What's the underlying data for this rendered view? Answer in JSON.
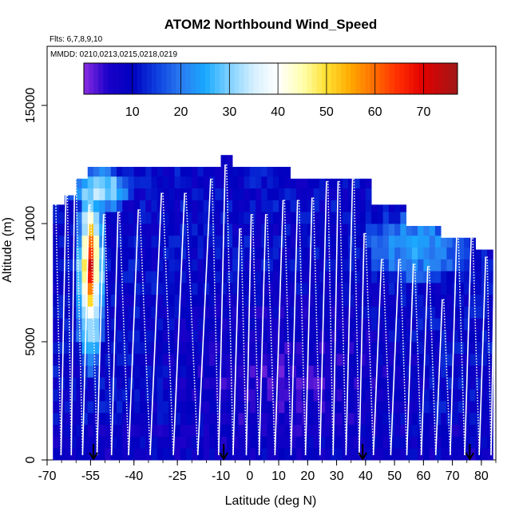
{
  "chart_data": {
    "type": "heatmap",
    "title": "ATOM2 Northbound Wind_Speed",
    "subtitle_flights": "Flts: 6,7,8,9,10",
    "subtitle_dates": "MMDD: 0210,0213,0215,0218,0219",
    "xlabel": "Latitude (deg N)",
    "ylabel": "Altitude (m)",
    "xlim": [
      -70,
      85
    ],
    "ylim": [
      0,
      17500
    ],
    "x_ticks": [
      {
        "value": -70,
        "label": "-70"
      },
      {
        "value": -55,
        "label": "-55"
      },
      {
        "value": -40,
        "label": "-40"
      },
      {
        "value": -25,
        "label": "-25"
      },
      {
        "value": -10,
        "label": "-10"
      },
      {
        "value": 0,
        "label": "0"
      },
      {
        "value": 10,
        "label": "10"
      },
      {
        "value": 20,
        "label": "20"
      },
      {
        "value": 30,
        "label": "30"
      },
      {
        "value": 40,
        "label": "40"
      },
      {
        "value": 50,
        "label": "50"
      },
      {
        "value": 60,
        "label": "60"
      },
      {
        "value": 70,
        "label": "70"
      },
      {
        "value": 80,
        "label": "80"
      }
    ],
    "y_ticks": [
      {
        "value": 0,
        "label": "0"
      },
      {
        "value": 5000,
        "label": "5000"
      },
      {
        "value": 10000,
        "label": "10000"
      },
      {
        "value": 15000,
        "label": "15000"
      }
    ],
    "colorbar": {
      "min": 0,
      "max": 77,
      "ticks": [
        {
          "value": 10,
          "label": "10"
        },
        {
          "value": 20,
          "label": "20"
        },
        {
          "value": 30,
          "label": "30"
        },
        {
          "value": 40,
          "label": "40"
        },
        {
          "value": 50,
          "label": "50"
        },
        {
          "value": 60,
          "label": "60"
        },
        {
          "value": 70,
          "label": "70"
        }
      ],
      "stops": [
        {
          "value": 0,
          "color": "#8a2be2"
        },
        {
          "value": 5,
          "color": "#1a00c8"
        },
        {
          "value": 10,
          "color": "#0000c0"
        },
        {
          "value": 15,
          "color": "#0d3fe0"
        },
        {
          "value": 20,
          "color": "#2a7af0"
        },
        {
          "value": 25,
          "color": "#19a9ff"
        },
        {
          "value": 30,
          "color": "#7fd0ff"
        },
        {
          "value": 35,
          "color": "#d6f0ff"
        },
        {
          "value": 40,
          "color": "#ffffff"
        },
        {
          "value": 45,
          "color": "#ffffb0"
        },
        {
          "value": 50,
          "color": "#ffe030"
        },
        {
          "value": 55,
          "color": "#ffa800"
        },
        {
          "value": 60,
          "color": "#ff6a00"
        },
        {
          "value": 65,
          "color": "#ff2a00"
        },
        {
          "value": 70,
          "color": "#e00000"
        },
        {
          "value": 77,
          "color": "#a01818"
        }
      ]
    },
    "column_top_altitudes": [
      {
        "lat": -68,
        "top": 10800
      },
      {
        "lat": -64,
        "top": 11200
      },
      {
        "lat": -60,
        "top": 11900
      },
      {
        "lat": -56,
        "top": 12400
      },
      {
        "lat": -50,
        "top": 12400
      },
      {
        "lat": -44,
        "top": 12400
      },
      {
        "lat": -38,
        "top": 12400
      },
      {
        "lat": -32,
        "top": 12400
      },
      {
        "lat": -26,
        "top": 12400
      },
      {
        "lat": -20,
        "top": 12400
      },
      {
        "lat": -14,
        "top": 12400
      },
      {
        "lat": -10,
        "top": 12900
      },
      {
        "lat": -6,
        "top": 12400
      },
      {
        "lat": -2,
        "top": 12400
      },
      {
        "lat": 4,
        "top": 12400
      },
      {
        "lat": 10,
        "top": 12400
      },
      {
        "lat": 14,
        "top": 11900
      },
      {
        "lat": 20,
        "top": 11900
      },
      {
        "lat": 26,
        "top": 11900
      },
      {
        "lat": 32,
        "top": 11900
      },
      {
        "lat": 38,
        "top": 11900
      },
      {
        "lat": 42,
        "top": 10800
      },
      {
        "lat": 48,
        "top": 10800
      },
      {
        "lat": 54,
        "top": 9900
      },
      {
        "lat": 60,
        "top": 9900
      },
      {
        "lat": 66,
        "top": 9400
      },
      {
        "lat": 72,
        "top": 9400
      },
      {
        "lat": 78,
        "top": 8900
      },
      {
        "lat": 82,
        "top": 8900
      }
    ],
    "wind_features": [
      {
        "name": "southern jet core",
        "lat_range": [
          -58,
          -52
        ],
        "alt_range": [
          5500,
          11000
        ],
        "speed": 70
      },
      {
        "name": "southern jet halo",
        "lat_range": [
          -60,
          -50
        ],
        "alt_range": [
          4000,
          12000
        ],
        "speed": 45
      },
      {
        "name": "upper-level southern outflow",
        "lat_range": [
          -62,
          -42
        ],
        "alt_range": [
          10500,
          12400
        ],
        "speed": 35
      },
      {
        "name": "northern upper jet",
        "lat_range": [
          40,
          76
        ],
        "alt_range": [
          7500,
          10500
        ],
        "speed": 24
      },
      {
        "name": "tropical weak-wind zone",
        "lat_range": [
          -30,
          55
        ],
        "alt_range": [
          0,
          7000
        ],
        "speed": 4
      }
    ],
    "flight_profile_latitudes": [
      -67,
      -63,
      -60,
      -55,
      -50,
      -45,
      -38,
      -30,
      -22,
      -13,
      -8,
      -3,
      1,
      6,
      12,
      17,
      22,
      27,
      31,
      36,
      40,
      46,
      52,
      57,
      62,
      67,
      72,
      77,
      82
    ],
    "flight_profile_tops": [
      10800,
      11200,
      11900,
      10800,
      10400,
      10500,
      10600,
      11300,
      11300,
      11900,
      12500,
      9800,
      10400,
      10400,
      11000,
      11000,
      11100,
      11800,
      11800,
      11900,
      9600,
      8500,
      8500,
      8300,
      8200,
      6800,
      9600,
      9500,
      8600
    ],
    "arrow_markers_lat": [
      -54,
      -9,
      39,
      76
    ]
  }
}
